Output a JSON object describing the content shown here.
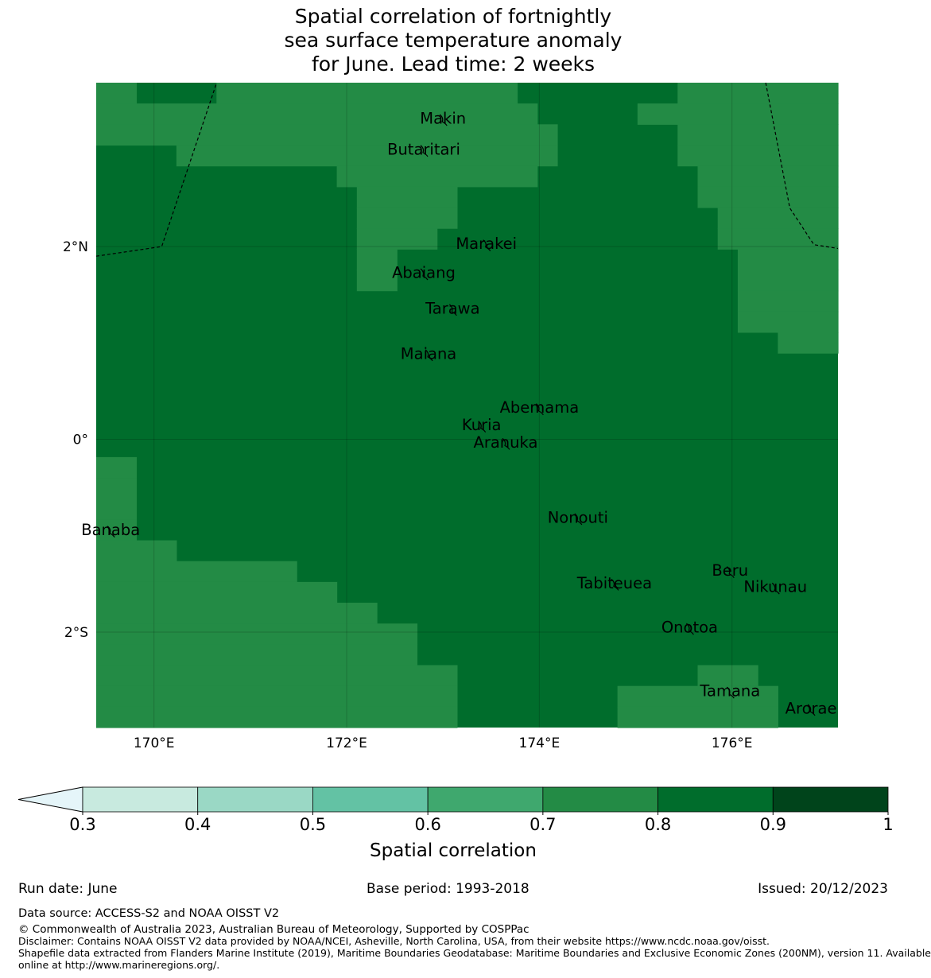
{
  "title_lines": [
    "Spatial correlation of fortnightly",
    "sea surface temperature anomaly",
    "for June. Lead time: 2 weeks"
  ],
  "map": {
    "lon_range": [
      169.4,
      177.1
    ],
    "lat_range": [
      -2.99,
      3.7
    ],
    "palette": [
      "#c8eadf",
      "#9ad8c5",
      "#63c2a4",
      "#3fa86e",
      "#238b45",
      "#006d2c",
      "#00441b"
    ],
    "grid_colors": {
      "0": "#238b45",
      "1": "#006d2c"
    },
    "grid_rows": [
      "0011110000000000000001111111100000000",
      "0000000000000000000000111110000000000",
      "0000000000000000000000011111100000000",
      "1111000000000000000000011111100000000",
      "1111111111110000000000111111110000000",
      "1111111111111000001111111111110000000",
      "1111111111111000001111111111111000000",
      "1111111111111000011111111111111000000",
      "1111111111111001111111111111111100000",
      "1111111111111001111111111111111100000",
      "1111111111111111111111111111111100000",
      "1111111111111111111111111111111100000",
      "1111111111111111111111111111111111000",
      "1111111111111111111111111111111111111",
      "1111111111111111111111111111111111111",
      "1111111111111111111111111111111111111",
      "1111111111111111111111111111111111111",
      "1111111111111111111111111111111111111",
      "0011111111111111111111111111111111111",
      "0011111111111111111111111111111111111",
      "0011111111111111111111111111111111111",
      "0011111111111111111111111111111111111",
      "0000111111111111111111111111111111111",
      "0000000000111111111111111111111111111",
      "0000000000001111111111111111111111111",
      "0000000000000011111111111111111111111",
      "0000000000000000111111111111111111111",
      "0000000000000000111111111111111111111",
      "0000000000000000001111111111110001111",
      "0000000000000000001111111100000000111",
      "0000000000000000001111111100000000111"
    ],
    "x_ticks": [
      {
        "lon": 170,
        "label": "170°E"
      },
      {
        "lon": 172,
        "label": "172°E"
      },
      {
        "lon": 174,
        "label": "174°E"
      },
      {
        "lon": 176,
        "label": "176°E"
      }
    ],
    "y_ticks": [
      {
        "lat": 2,
        "label": "2°N"
      },
      {
        "lat": 0,
        "label": "0°"
      },
      {
        "lat": -2,
        "label": "2°S"
      }
    ],
    "eez_boundaries": [
      [
        [
          169.4,
          1.9
        ],
        [
          170.08,
          2.0
        ],
        [
          170.65,
          3.7
        ]
      ],
      [
        [
          176.35,
          3.7
        ],
        [
          176.6,
          2.4
        ],
        [
          176.85,
          2.02
        ],
        [
          177.1,
          1.98
        ]
      ]
    ],
    "places": [
      {
        "name": "Makin",
        "lon": 173.0,
        "lat": 3.32
      },
      {
        "name": "Butaritari",
        "lon": 172.8,
        "lat": 3.0
      },
      {
        "name": "Marakei",
        "lon": 173.45,
        "lat": 2.02
      },
      {
        "name": "Abaiang",
        "lon": 172.8,
        "lat": 1.72
      },
      {
        "name": "Tarawa",
        "lon": 173.1,
        "lat": 1.35
      },
      {
        "name": "Maiana",
        "lon": 172.85,
        "lat": 0.88
      },
      {
        "name": "Abemama",
        "lon": 174.0,
        "lat": 0.32
      },
      {
        "name": "Kuria",
        "lon": 173.4,
        "lat": 0.14
      },
      {
        "name": "Aranuka",
        "lon": 173.65,
        "lat": -0.04
      },
      {
        "name": "Nonouti",
        "lon": 174.4,
        "lat": -0.82
      },
      {
        "name": "Banaba",
        "lon": 169.55,
        "lat": -0.95
      },
      {
        "name": "Tabiteuea",
        "lon": 174.78,
        "lat": -1.5
      },
      {
        "name": "Beru",
        "lon": 175.98,
        "lat": -1.37
      },
      {
        "name": "Nikunau",
        "lon": 176.45,
        "lat": -1.54
      },
      {
        "name": "Onotoa",
        "lon": 175.56,
        "lat": -1.96
      },
      {
        "name": "Tamana",
        "lon": 175.98,
        "lat": -2.62
      },
      {
        "name": "Arorae",
        "lon": 176.82,
        "lat": -2.8
      }
    ]
  },
  "colorbar": {
    "label": "Spatial correlation",
    "ticks": [
      "0.3",
      "0.4",
      "0.5",
      "0.6",
      "0.7",
      "0.8",
      "0.9",
      "1"
    ],
    "extend_color": "#e5f5f9",
    "colors": [
      "#c8eadf",
      "#9ad8c5",
      "#63c2a4",
      "#3fa86e",
      "#238b45",
      "#006d2c",
      "#00441b"
    ]
  },
  "footer": {
    "run_date": "Run date: June",
    "base_period": "Base period: 1993-2018",
    "issued": "Issued: 20/12/2023",
    "data_source": "Data source: ACCESS-S2 and NOAA OISST V2",
    "copyright": "© Commonwealth of Australia 2023, Australian Bureau of Meteorology, Supported by COSPPac",
    "disclaimer": "Disclaimer: Contains NOAA OISST V2 data provided by NOAA/NCEI, Asheville, North Carolina, USA, from their website https://www.ncdc.noaa.gov/oisst.",
    "shapefile_1": "Shapefile data extracted from Flanders Marine Institute (2019), Maritime Boundaries Geodatabase: Maritime Boundaries and Exclusive Economic Zones (200NM), version 11. Available",
    "shapefile_2": "online at http://www.marineregions.org/."
  }
}
